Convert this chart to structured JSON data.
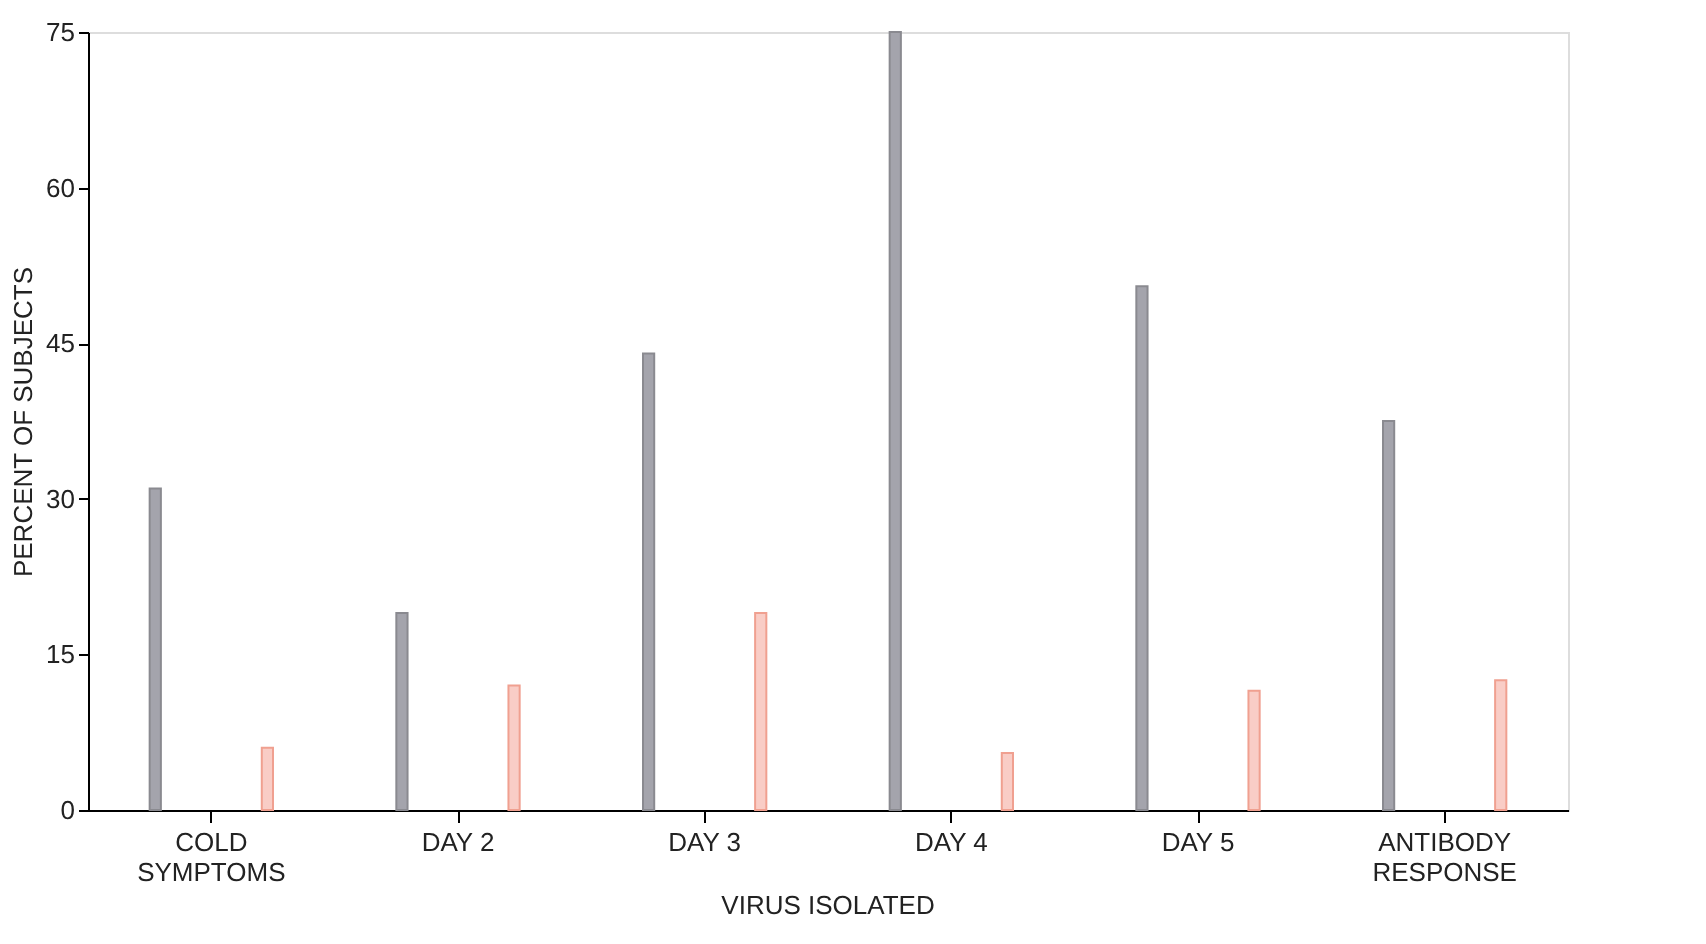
{
  "chart_data": {
    "type": "bar",
    "ylabel": "PERCENT OF SUBJECTS",
    "categories": [
      "COLD\nSYMPTOMS",
      "DAY 2",
      "DAY 3",
      "DAY 4",
      "DAY 5",
      "ANTIBODY\nRESPONSE"
    ],
    "series": [
      {
        "color": "#a4a4ac",
        "values": [
          31,
          19,
          44,
          75,
          50.5,
          37.5
        ]
      },
      {
        "color": "#f9cdc6",
        "values": [
          6,
          12,
          19,
          5.5,
          11.5,
          12.5
        ]
      }
    ],
    "ylim": [
      0,
      75
    ],
    "yticks": [
      0,
      15,
      30,
      45,
      60,
      75
    ],
    "grid": false,
    "legend": false,
    "annotations": [
      "VIRUS ISOLATED"
    ]
  }
}
